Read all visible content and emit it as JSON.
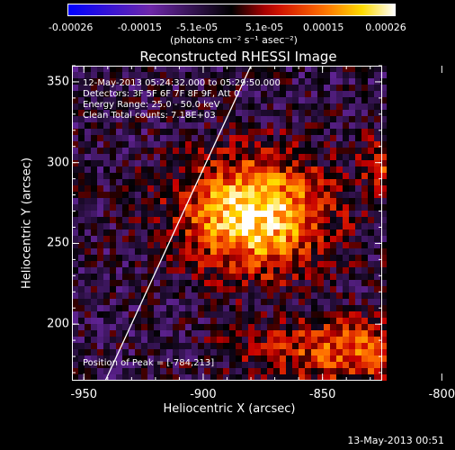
{
  "chart_data": {
    "type": "heatmap",
    "title": "Reconstructed RHESSI Image",
    "xlabel": "Heliocentric X (arcsec)",
    "ylabel": "Heliocentric Y (arcsec)",
    "xlim": [
      -955,
      -825
    ],
    "ylim": [
      165,
      360
    ],
    "x_ticks": [
      "-950",
      "-900",
      "-850",
      "-800"
    ],
    "y_ticks": [
      "200",
      "250",
      "300",
      "350"
    ],
    "colorbar": {
      "ticks": [
        "-0.00026",
        "-0.00015",
        "-5.1e-05",
        "5.1e-05",
        "0.00015",
        "0.00026"
      ],
      "range": [
        -0.00026,
        0.00026
      ],
      "units": "(photons cm⁻² s⁻¹ asec⁻²)",
      "colormap": "blue-purple-red-orange-yellow-white"
    },
    "annotations": {
      "time_range": "12-May-2013 05:24:32.000 to 05:29:50.000",
      "detectors": "Detectors: 3F 5F 6F 7F 8F 9F, Att 0",
      "energy_range": "Energy Range: 25.0 - 50.0 keV",
      "clean": "Clean     Total counts: 7.18E+03",
      "peak": "Position of Peak = [-784,213]"
    },
    "peak_position": [
      -784,
      213
    ],
    "limb_line": [
      [
        -941,
        165
      ],
      [
        -880,
        360
      ]
    ]
  },
  "footer": {
    "timestamp": "13-May-2013 00:51"
  }
}
